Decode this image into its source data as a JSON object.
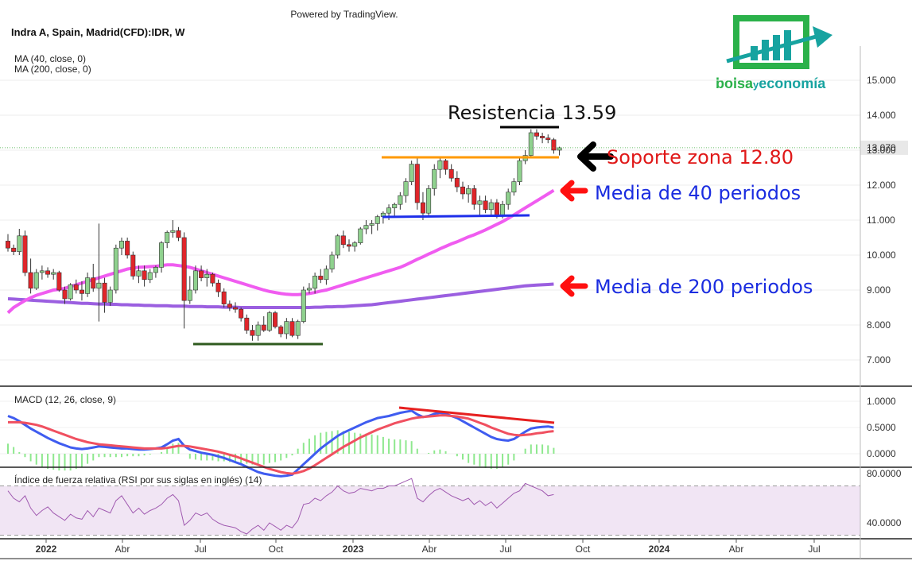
{
  "header": {
    "powered": "Powered by TradingView.",
    "symbol": "Indra A, Spain, Madrid(CFD):IDR, W",
    "ma40_label": "MA (40, close, 0)",
    "ma200_label": "MA (200, close, 0)",
    "last_price": "13.070"
  },
  "logo": {
    "text_a": "bolsa",
    "text_y": "y",
    "text_b": "economía",
    "colors": {
      "green": "#2bb14a",
      "teal": "#17a3a0"
    }
  },
  "colors": {
    "up": "#8fd18e",
    "down": "#e0252a",
    "ma40": "#f05cf0",
    "ma200": "#9b5fe0",
    "macd": "#3f5cf0",
    "signal": "#f05060",
    "hist": "#8ee88e",
    "rsi": "#a05ab0",
    "rsi_band": "#f1e5f4",
    "resistance": "#000000",
    "support": "#ff9900",
    "lower_support": "#1d2eea",
    "bottom": "#2e5a1e",
    "divergence": "#e62020"
  },
  "annotations": {
    "resistance": "Resistencia 13.59",
    "support": "Soporte zona 12.80",
    "ma40": "Media de 40 periodos",
    "ma200": "Media de 200 periodos"
  },
  "macd_label": "MACD (12, 26, close, 9)",
  "rsi_label": "Índice de fuerza relativa (RSI por sus siglas en inglés) (14)",
  "x_axis_labels": [
    "2022",
    "Abr",
    "Jul",
    "Oct",
    "2023",
    "Abr",
    "Jul",
    "Oct",
    "2024",
    "Abr",
    "Jul"
  ],
  "chart_data": {
    "type": "candlestick",
    "price_axis": {
      "ticks": [
        "7.000",
        "8.000",
        "9.000",
        "10.000",
        "11.000",
        "12.000",
        "13.000",
        "14.000",
        "15.000"
      ],
      "range": [
        6.6,
        15.6
      ]
    },
    "macd_axis": {
      "ticks": [
        "0.0000",
        "0.5000",
        "1.0000"
      ],
      "range": [
        -0.25,
        1.1
      ]
    },
    "rsi_axis": {
      "ticks": [
        "40.0000",
        "80.0000"
      ],
      "range": [
        27,
        83
      ],
      "band": [
        30,
        70
      ]
    },
    "candles": [
      [
        10.4,
        10.6,
        10.1,
        10.2
      ],
      [
        10.2,
        10.3,
        10.0,
        10.1
      ],
      [
        10.1,
        10.75,
        10.0,
        10.55
      ],
      [
        10.55,
        10.7,
        9.4,
        9.5
      ],
      [
        9.5,
        9.9,
        8.9,
        9.05
      ],
      [
        9.05,
        9.6,
        9.0,
        9.5
      ],
      [
        9.5,
        9.7,
        9.3,
        9.55
      ],
      [
        9.55,
        9.65,
        9.35,
        9.45
      ],
      [
        9.45,
        9.6,
        9.3,
        9.5
      ],
      [
        9.5,
        9.55,
        8.95,
        9.0
      ],
      [
        9.0,
        9.1,
        8.6,
        8.75
      ],
      [
        8.75,
        9.2,
        8.7,
        9.15
      ],
      [
        9.15,
        9.3,
        8.9,
        9.0
      ],
      [
        9.0,
        9.25,
        8.7,
        8.9
      ],
      [
        8.9,
        9.5,
        8.8,
        9.35
      ],
      [
        9.35,
        9.75,
        8.95,
        9.05
      ],
      [
        9.05,
        10.9,
        8.1,
        9.2
      ],
      [
        9.2,
        9.35,
        8.35,
        8.65
      ],
      [
        8.65,
        9.1,
        8.55,
        9.0
      ],
      [
        9.0,
        10.3,
        8.9,
        10.2
      ],
      [
        10.2,
        10.5,
        10.0,
        10.4
      ],
      [
        10.4,
        10.5,
        9.9,
        10.0
      ],
      [
        10.0,
        10.1,
        9.3,
        9.4
      ],
      [
        9.4,
        9.7,
        9.2,
        9.55
      ],
      [
        9.55,
        9.7,
        9.1,
        9.3
      ],
      [
        9.3,
        9.6,
        9.2,
        9.5
      ],
      [
        9.5,
        9.7,
        9.35,
        9.65
      ],
      [
        9.65,
        10.4,
        9.5,
        10.35
      ],
      [
        10.35,
        10.7,
        10.2,
        10.65
      ],
      [
        10.65,
        11.0,
        10.5,
        10.7
      ],
      [
        10.7,
        10.8,
        10.4,
        10.5
      ],
      [
        10.5,
        10.65,
        7.9,
        8.7
      ],
      [
        8.7,
        9.4,
        8.6,
        9.0
      ],
      [
        9.0,
        9.7,
        8.9,
        9.55
      ],
      [
        9.55,
        9.7,
        9.25,
        9.35
      ],
      [
        9.35,
        9.6,
        9.1,
        9.45
      ],
      [
        9.45,
        9.5,
        9.1,
        9.2
      ],
      [
        9.2,
        9.3,
        8.8,
        8.95
      ],
      [
        8.95,
        9.05,
        8.5,
        8.6
      ],
      [
        8.6,
        8.7,
        8.4,
        8.5
      ],
      [
        8.5,
        8.65,
        8.35,
        8.45
      ],
      [
        8.45,
        8.5,
        8.1,
        8.2
      ],
      [
        8.2,
        8.3,
        7.75,
        7.85
      ],
      [
        7.85,
        8.0,
        7.55,
        7.7
      ],
      [
        7.7,
        8.1,
        7.55,
        8.0
      ],
      [
        8.0,
        8.25,
        7.8,
        7.85
      ],
      [
        7.85,
        8.4,
        7.8,
        8.35
      ],
      [
        8.35,
        8.4,
        7.9,
        7.95
      ],
      [
        7.95,
        8.0,
        7.65,
        7.75
      ],
      [
        7.75,
        8.2,
        7.6,
        8.1
      ],
      [
        8.1,
        8.2,
        7.65,
        7.7
      ],
      [
        7.7,
        8.15,
        7.6,
        8.1
      ],
      [
        8.1,
        9.1,
        8.05,
        9.0
      ],
      [
        9.0,
        9.2,
        8.9,
        9.05
      ],
      [
        9.05,
        9.5,
        8.9,
        9.4
      ],
      [
        9.4,
        9.6,
        9.2,
        9.3
      ],
      [
        9.3,
        9.7,
        9.15,
        9.6
      ],
      [
        9.6,
        10.1,
        9.5,
        10.0
      ],
      [
        10.0,
        10.6,
        9.9,
        10.55
      ],
      [
        10.55,
        10.7,
        10.2,
        10.3
      ],
      [
        10.3,
        10.45,
        10.1,
        10.25
      ],
      [
        10.25,
        10.4,
        10.1,
        10.35
      ],
      [
        10.35,
        10.8,
        10.3,
        10.75
      ],
      [
        10.75,
        11.0,
        10.6,
        10.85
      ],
      [
        10.85,
        11.0,
        10.6,
        10.9
      ],
      [
        10.9,
        11.15,
        10.7,
        11.1
      ],
      [
        11.1,
        11.25,
        10.9,
        11.2
      ],
      [
        11.2,
        11.45,
        11.0,
        11.35
      ],
      [
        11.35,
        11.5,
        11.1,
        11.45
      ],
      [
        11.45,
        11.8,
        11.3,
        11.7
      ],
      [
        11.7,
        12.2,
        11.5,
        12.1
      ],
      [
        12.1,
        12.7,
        12.0,
        12.6
      ],
      [
        12.6,
        12.8,
        11.3,
        11.5
      ],
      [
        11.5,
        11.8,
        11.0,
        11.2
      ],
      [
        11.2,
        12.0,
        11.1,
        11.9
      ],
      [
        11.9,
        12.6,
        11.7,
        12.45
      ],
      [
        12.45,
        12.8,
        12.2,
        12.7
      ],
      [
        12.7,
        12.75,
        12.3,
        12.45
      ],
      [
        12.45,
        12.6,
        12.1,
        12.2
      ],
      [
        12.2,
        12.4,
        11.8,
        11.95
      ],
      [
        11.95,
        12.1,
        11.6,
        11.75
      ],
      [
        11.75,
        12.0,
        11.5,
        11.9
      ],
      [
        11.9,
        12.0,
        11.3,
        11.45
      ],
      [
        11.45,
        11.7,
        11.1,
        11.55
      ],
      [
        11.55,
        11.7,
        11.2,
        11.3
      ],
      [
        11.3,
        11.6,
        11.1,
        11.5
      ],
      [
        11.5,
        11.6,
        11.05,
        11.15
      ],
      [
        11.15,
        11.55,
        11.05,
        11.45
      ],
      [
        11.45,
        11.9,
        11.3,
        11.8
      ],
      [
        11.8,
        12.2,
        11.7,
        12.1
      ],
      [
        12.1,
        12.8,
        12.0,
        12.7
      ],
      [
        12.7,
        13.0,
        12.6,
        12.85
      ],
      [
        12.85,
        13.6,
        12.8,
        13.5
      ],
      [
        13.5,
        13.6,
        13.3,
        13.4
      ],
      [
        13.4,
        13.5,
        13.2,
        13.35
      ],
      [
        13.35,
        13.45,
        13.2,
        13.3
      ],
      [
        13.3,
        13.35,
        12.9,
        13.0
      ],
      [
        13.0,
        13.1,
        12.85,
        13.07
      ]
    ],
    "ma40": [
      8.35,
      8.5,
      8.6,
      8.7,
      8.78,
      8.85,
      8.9,
      8.95,
      9.0,
      9.02,
      9.05,
      9.1,
      9.15,
      9.2,
      9.25,
      9.3,
      9.35,
      9.4,
      9.45,
      9.5,
      9.55,
      9.6,
      9.63,
      9.65,
      9.66,
      9.67,
      9.68,
      9.7,
      9.72,
      9.72,
      9.7,
      9.68,
      9.65,
      9.6,
      9.55,
      9.5,
      9.45,
      9.4,
      9.35,
      9.3,
      9.25,
      9.2,
      9.15,
      9.1,
      9.05,
      9.0,
      8.96,
      8.93,
      8.9,
      8.88,
      8.87,
      8.87,
      8.88,
      8.9,
      8.93,
      8.97,
      9.0,
      9.05,
      9.1,
      9.15,
      9.2,
      9.25,
      9.3,
      9.35,
      9.4,
      9.45,
      9.5,
      9.55,
      9.6,
      9.65,
      9.72,
      9.8,
      9.88,
      9.95,
      10.03,
      10.1,
      10.18,
      10.25,
      10.32,
      10.38,
      10.45,
      10.52,
      10.58,
      10.65,
      10.72,
      10.8,
      10.88,
      10.96,
      11.05,
      11.15,
      11.25,
      11.35,
      11.45,
      11.55,
      11.65,
      11.75,
      11.85
    ],
    "ma200": [
      8.75,
      8.74,
      8.73,
      8.72,
      8.71,
      8.7,
      8.69,
      8.68,
      8.67,
      8.66,
      8.65,
      8.64,
      8.63,
      8.62,
      8.62,
      8.61,
      8.6,
      8.6,
      8.59,
      8.59,
      8.58,
      8.58,
      8.57,
      8.57,
      8.56,
      8.56,
      8.55,
      8.55,
      8.55,
      8.54,
      8.54,
      8.54,
      8.53,
      8.53,
      8.53,
      8.52,
      8.52,
      8.52,
      8.51,
      8.51,
      8.51,
      8.5,
      8.5,
      8.5,
      8.5,
      8.5,
      8.5,
      8.5,
      8.5,
      8.5,
      8.5,
      8.5,
      8.5,
      8.5,
      8.51,
      8.51,
      8.52,
      8.52,
      8.53,
      8.53,
      8.54,
      8.55,
      8.56,
      8.57,
      8.58,
      8.6,
      8.62,
      8.64,
      8.66,
      8.68,
      8.7,
      8.72,
      8.74,
      8.76,
      8.78,
      8.8,
      8.82,
      8.84,
      8.86,
      8.88,
      8.9,
      8.92,
      8.94,
      8.96,
      8.98,
      9.0,
      9.02,
      9.04,
      9.06,
      9.08,
      9.1,
      9.12,
      9.13,
      9.14,
      9.15,
      9.16,
      9.17
    ],
    "macd": [
      0.72,
      0.68,
      0.62,
      0.55,
      0.48,
      0.42,
      0.36,
      0.3,
      0.25,
      0.2,
      0.16,
      0.12,
      0.1,
      0.09,
      0.1,
      0.12,
      0.14,
      0.13,
      0.12,
      0.11,
      0.1,
      0.1,
      0.09,
      0.08,
      0.08,
      0.09,
      0.1,
      0.12,
      0.18,
      0.25,
      0.28,
      0.15,
      0.08,
      0.05,
      0.02,
      0.0,
      -0.02,
      -0.05,
      -0.08,
      -0.12,
      -0.16,
      -0.2,
      -0.25,
      -0.3,
      -0.35,
      -0.38,
      -0.4,
      -0.42,
      -0.43,
      -0.42,
      -0.4,
      -0.3,
      -0.2,
      -0.1,
      0.0,
      0.1,
      0.18,
      0.26,
      0.34,
      0.4,
      0.45,
      0.5,
      0.55,
      0.6,
      0.64,
      0.68,
      0.7,
      0.72,
      0.75,
      0.78,
      0.8,
      0.82,
      0.75,
      0.7,
      0.72,
      0.76,
      0.78,
      0.76,
      0.72,
      0.68,
      0.62,
      0.56,
      0.5,
      0.44,
      0.38,
      0.32,
      0.28,
      0.26,
      0.25,
      0.28,
      0.35,
      0.42,
      0.48,
      0.5,
      0.51,
      0.52,
      0.5
    ],
    "signal": [
      0.6,
      0.6,
      0.6,
      0.59,
      0.57,
      0.55,
      0.52,
      0.48,
      0.44,
      0.4,
      0.36,
      0.32,
      0.28,
      0.25,
      0.22,
      0.2,
      0.18,
      0.17,
      0.16,
      0.15,
      0.14,
      0.13,
      0.12,
      0.11,
      0.1,
      0.1,
      0.1,
      0.1,
      0.11,
      0.13,
      0.15,
      0.15,
      0.14,
      0.12,
      0.1,
      0.08,
      0.06,
      0.04,
      0.01,
      -0.02,
      -0.05,
      -0.09,
      -0.13,
      -0.17,
      -0.21,
      -0.25,
      -0.29,
      -0.32,
      -0.35,
      -0.37,
      -0.38,
      -0.36,
      -0.33,
      -0.28,
      -0.22,
      -0.15,
      -0.08,
      -0.01,
      0.06,
      0.13,
      0.19,
      0.25,
      0.31,
      0.36,
      0.41,
      0.46,
      0.5,
      0.54,
      0.58,
      0.61,
      0.64,
      0.67,
      0.69,
      0.7,
      0.71,
      0.72,
      0.73,
      0.73,
      0.72,
      0.71,
      0.69,
      0.67,
      0.63,
      0.59,
      0.55,
      0.5,
      0.46,
      0.42,
      0.38,
      0.36,
      0.35,
      0.36,
      0.37,
      0.39,
      0.4,
      0.42,
      0.43
    ],
    "rsi": [
      66,
      60,
      57,
      62,
      52,
      46,
      50,
      53,
      48,
      45,
      42,
      47,
      44,
      43,
      50,
      45,
      52,
      50,
      48,
      58,
      62,
      55,
      48,
      52,
      47,
      50,
      52,
      55,
      60,
      63,
      58,
      38,
      42,
      48,
      46,
      48,
      43,
      40,
      38,
      37,
      36,
      33,
      31,
      35,
      38,
      34,
      40,
      37,
      34,
      38,
      36,
      42,
      55,
      56,
      60,
      58,
      62,
      65,
      70,
      66,
      64,
      65,
      68,
      67,
      66,
      68,
      68,
      70,
      70,
      72,
      74,
      76,
      60,
      57,
      62,
      66,
      68,
      65,
      62,
      60,
      58,
      60,
      55,
      58,
      54,
      57,
      52,
      56,
      60,
      64,
      66,
      72,
      70,
      68,
      66,
      62,
      63
    ]
  }
}
